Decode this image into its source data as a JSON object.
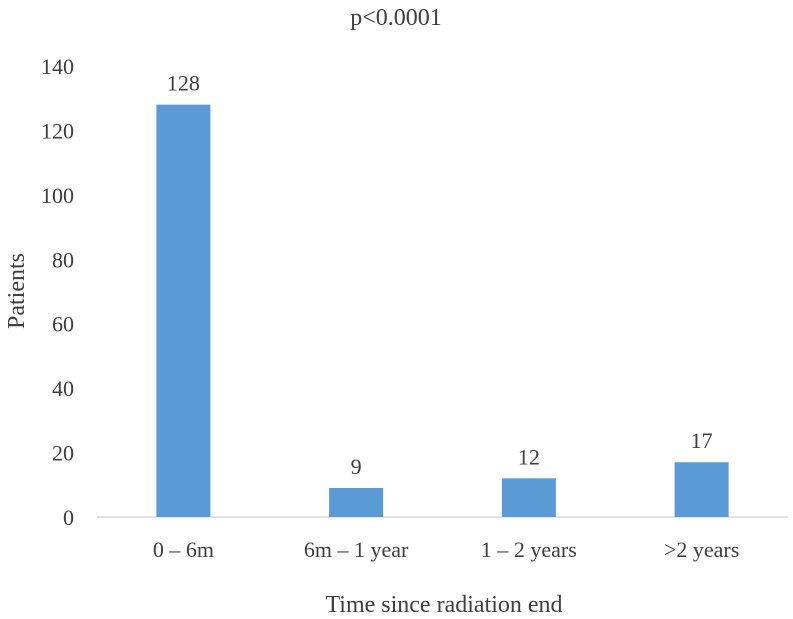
{
  "chart_data": {
    "type": "bar",
    "title": "p<0.0001",
    "xlabel": "Time since radiation end",
    "ylabel": "Patients",
    "categories": [
      "0 – 6m",
      "6m – 1 year",
      "1 – 2 years",
      ">2 years"
    ],
    "values": [
      128,
      9,
      12,
      17
    ],
    "ylim": [
      0,
      140
    ],
    "yticks": [
      0,
      20,
      40,
      60,
      80,
      100,
      120,
      140
    ],
    "bar_color": "#5b9bd5",
    "grid": false,
    "legend": "none",
    "data_labels": true
  }
}
